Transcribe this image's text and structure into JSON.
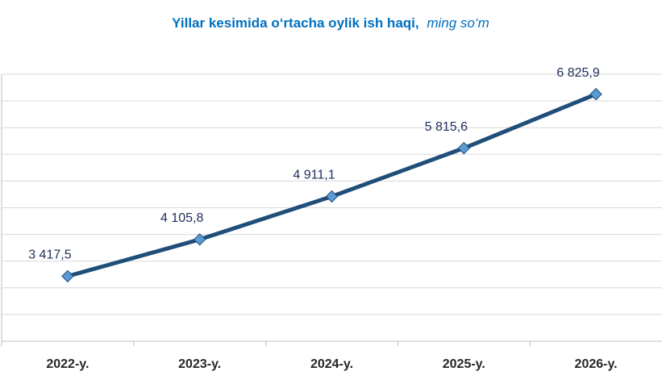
{
  "chart_data": {
    "type": "line",
    "title": "Yillar kesimida o‘rtacha oylik ish haqi,",
    "subtitle": "ming so‘m",
    "categories": [
      "2022-y.",
      "2023-y.",
      "2024-y.",
      "2025-y.",
      "2026-y."
    ],
    "series": [
      {
        "name": "O‘rtacha oylik ish haqi",
        "color": "#1f4e79",
        "values": [
          3417.5,
          4105.8,
          4911.1,
          5815.6,
          6825.9
        ],
        "value_labels": [
          "3 417,5",
          "4 105,8",
          "4 911,1",
          "5 815,6",
          "6 825,9"
        ]
      }
    ],
    "marker_color": "#5b9bd5",
    "ylim": [
      2200,
      7200
    ],
    "yticks": [
      2200,
      2700,
      3200,
      3700,
      4200,
      4700,
      5200,
      5700,
      6200,
      6700,
      7200
    ],
    "grid": true
  }
}
